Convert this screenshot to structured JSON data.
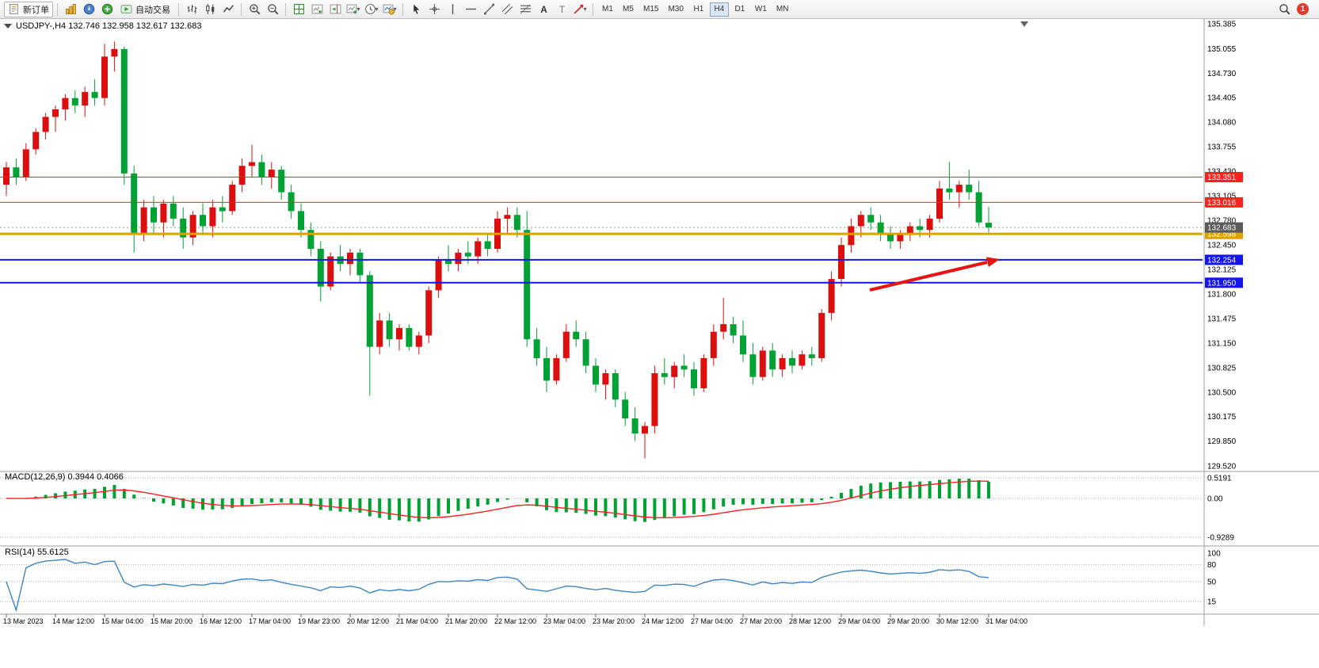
{
  "toolbar": {
    "new_order": "新订单",
    "autotrading": "自动交易",
    "timeframes": [
      "M1",
      "M5",
      "M15",
      "M30",
      "H1",
      "H4",
      "D1",
      "W1",
      "MN"
    ],
    "active_timeframe": "H4",
    "notification_count": "1"
  },
  "chart": {
    "symbol_label": "USDJPY-,H4",
    "ohlc_label": "132.746 132.958 132.617 132.683",
    "price_axis_labels": [
      "135.385",
      "135.055",
      "134.730",
      "134.405",
      "134.080",
      "133.755",
      "133.430",
      "133.105",
      "132.780",
      "132.450",
      "132.125",
      "131.800",
      "131.475",
      "131.150",
      "130.825",
      "130.500",
      "130.175",
      "129.850",
      "129.520"
    ],
    "hlines": [
      {
        "price": 133.351,
        "label": "133.351",
        "color": "#ff2020",
        "width": 1
      },
      {
        "price": 133.016,
        "label": "133.016",
        "color": "#ff2020",
        "width": 1
      },
      {
        "price": 132.598,
        "label": "132.598",
        "color": "#dfa000",
        "width": 3
      },
      {
        "price": 132.254,
        "label": "132.254",
        "color": "#1414ee",
        "width": 2
      },
      {
        "price": 131.95,
        "label": "131.950",
        "color": "#1414ee",
        "width": 2
      }
    ],
    "current_price": {
      "price": 132.683,
      "label": "132.683",
      "box_color": "#5a5a5a"
    }
  },
  "chart_data": {
    "type": "candlestick",
    "symbol": "USDJPY-",
    "timeframe": "H4",
    "ylim": [
      129.52,
      135.385
    ],
    "up_color": "#dd0e0e",
    "down_color": "#00a234",
    "x_labels": [
      "13 Mar 2023",
      "14 Mar 12:00",
      "15 Mar 04:00",
      "15 Mar 20:00",
      "16 Mar 12:00",
      "17 Mar 04:00",
      "19 Mar 23:00",
      "20 Mar 12:00",
      "21 Mar 04:00",
      "21 Mar 20:00",
      "22 Mar 12:00",
      "23 Mar 04:00",
      "23 Mar 20:00",
      "24 Mar 12:00",
      "27 Mar 04:00",
      "27 Mar 20:00",
      "28 Mar 12:00",
      "29 Mar 04:00",
      "29 Mar 20:00",
      "30 Mar 12:00",
      "31 Mar 04:00"
    ],
    "ohlc": [
      [
        133.25,
        133.55,
        133.1,
        133.48
      ],
      [
        133.48,
        133.6,
        133.25,
        133.35
      ],
      [
        133.35,
        133.8,
        133.3,
        133.72
      ],
      [
        133.72,
        134.0,
        133.65,
        133.95
      ],
      [
        133.95,
        134.2,
        133.85,
        134.15
      ],
      [
        134.15,
        134.3,
        133.95,
        134.25
      ],
      [
        134.25,
        134.45,
        134.1,
        134.4
      ],
      [
        134.4,
        134.5,
        134.2,
        134.3
      ],
      [
        134.3,
        134.55,
        134.15,
        134.48
      ],
      [
        134.48,
        134.65,
        134.3,
        134.4
      ],
      [
        134.4,
        135.12,
        134.3,
        134.95
      ],
      [
        134.95,
        135.15,
        134.75,
        135.05
      ],
      [
        135.05,
        135.08,
        133.25,
        133.4
      ],
      [
        133.4,
        133.5,
        132.35,
        132.6
      ],
      [
        132.6,
        133.05,
        132.5,
        132.95
      ],
      [
        132.95,
        133.1,
        132.6,
        132.75
      ],
      [
        132.75,
        133.05,
        132.55,
        133.0
      ],
      [
        133.0,
        133.1,
        132.7,
        132.8
      ],
      [
        132.8,
        132.95,
        132.4,
        132.55
      ],
      [
        132.55,
        132.9,
        132.45,
        132.85
      ],
      [
        132.85,
        133.0,
        132.6,
        132.7
      ],
      [
        132.7,
        133.05,
        132.55,
        132.95
      ],
      [
        132.95,
        133.1,
        132.75,
        132.9
      ],
      [
        132.9,
        133.3,
        132.85,
        133.25
      ],
      [
        133.25,
        133.6,
        133.15,
        133.5
      ],
      [
        133.5,
        133.78,
        133.35,
        133.55
      ],
      [
        133.55,
        133.65,
        133.25,
        133.35
      ],
      [
        133.35,
        133.55,
        133.2,
        133.45
      ],
      [
        133.45,
        133.5,
        133.05,
        133.15
      ],
      [
        133.15,
        133.25,
        132.8,
        132.9
      ],
      [
        132.9,
        133.0,
        132.55,
        132.65
      ],
      [
        132.65,
        132.75,
        132.3,
        132.4
      ],
      [
        132.4,
        132.5,
        131.7,
        131.9
      ],
      [
        131.9,
        132.35,
        131.85,
        132.3
      ],
      [
        132.3,
        132.45,
        132.1,
        132.2
      ],
      [
        132.2,
        132.4,
        132.05,
        132.35
      ],
      [
        132.35,
        132.4,
        131.95,
        132.05
      ],
      [
        132.05,
        132.1,
        130.45,
        131.1
      ],
      [
        131.1,
        131.55,
        131.0,
        131.45
      ],
      [
        131.45,
        131.55,
        131.1,
        131.2
      ],
      [
        131.2,
        131.4,
        131.05,
        131.35
      ],
      [
        131.35,
        131.4,
        131.05,
        131.1
      ],
      [
        131.1,
        131.3,
        131.0,
        131.25
      ],
      [
        131.25,
        131.9,
        131.15,
        131.85
      ],
      [
        131.85,
        132.3,
        131.75,
        132.25
      ],
      [
        132.25,
        132.45,
        132.1,
        132.2
      ],
      [
        132.2,
        132.4,
        132.1,
        132.35
      ],
      [
        132.35,
        132.5,
        132.2,
        132.3
      ],
      [
        132.3,
        132.55,
        132.2,
        132.5
      ],
      [
        132.5,
        132.6,
        132.3,
        132.4
      ],
      [
        132.4,
        132.9,
        132.35,
        132.8
      ],
      [
        132.8,
        132.95,
        132.6,
        132.85
      ],
      [
        132.85,
        132.95,
        132.55,
        132.65
      ],
      [
        132.65,
        132.9,
        131.1,
        131.2
      ],
      [
        131.2,
        131.35,
        130.85,
        130.95
      ],
      [
        130.95,
        131.1,
        130.5,
        130.65
      ],
      [
        130.65,
        131.0,
        130.6,
        130.95
      ],
      [
        130.95,
        131.4,
        130.9,
        131.3
      ],
      [
        131.3,
        131.45,
        131.1,
        131.2
      ],
      [
        131.2,
        131.3,
        130.75,
        130.85
      ],
      [
        130.85,
        130.95,
        130.5,
        130.6
      ],
      [
        130.6,
        130.8,
        130.4,
        130.75
      ],
      [
        130.75,
        130.8,
        130.3,
        130.4
      ],
      [
        130.4,
        130.5,
        130.05,
        130.15
      ],
      [
        130.15,
        130.3,
        129.85,
        129.95
      ],
      [
        129.95,
        130.1,
        129.62,
        130.05
      ],
      [
        130.05,
        130.85,
        129.95,
        130.75
      ],
      [
        130.75,
        130.95,
        130.6,
        130.7
      ],
      [
        130.7,
        130.9,
        130.55,
        130.85
      ],
      [
        130.85,
        131.0,
        130.7,
        130.8
      ],
      [
        130.8,
        130.9,
        130.45,
        130.55
      ],
      [
        130.55,
        131.0,
        130.5,
        130.95
      ],
      [
        130.95,
        131.4,
        130.85,
        131.3
      ],
      [
        131.3,
        131.75,
        131.2,
        131.4
      ],
      [
        131.4,
        131.5,
        131.15,
        131.25
      ],
      [
        131.25,
        131.45,
        130.9,
        131.0
      ],
      [
        131.0,
        131.15,
        130.6,
        130.7
      ],
      [
        130.7,
        131.1,
        130.65,
        131.05
      ],
      [
        131.05,
        131.15,
        130.7,
        130.8
      ],
      [
        130.8,
        131.0,
        130.7,
        130.95
      ],
      [
        130.95,
        131.05,
        130.75,
        130.85
      ],
      [
        130.85,
        131.05,
        130.8,
        131.0
      ],
      [
        131.0,
        131.1,
        130.85,
        130.95
      ],
      [
        130.95,
        131.6,
        130.9,
        131.55
      ],
      [
        131.55,
        132.1,
        131.45,
        132.0
      ],
      [
        132.0,
        132.55,
        131.9,
        132.45
      ],
      [
        132.45,
        132.8,
        132.35,
        132.7
      ],
      [
        132.7,
        132.9,
        132.55,
        132.85
      ],
      [
        132.85,
        132.95,
        132.65,
        132.75
      ],
      [
        132.75,
        132.85,
        132.5,
        132.6
      ],
      [
        132.6,
        132.7,
        132.4,
        132.5
      ],
      [
        132.5,
        132.65,
        132.4,
        132.6
      ],
      [
        132.6,
        132.75,
        132.5,
        132.7
      ],
      [
        132.7,
        132.8,
        132.55,
        132.65
      ],
      [
        132.65,
        132.85,
        132.55,
        132.8
      ],
      [
        132.8,
        133.3,
        132.75,
        133.2
      ],
      [
        133.2,
        133.55,
        133.05,
        133.15
      ],
      [
        133.15,
        133.3,
        132.95,
        133.25
      ],
      [
        133.25,
        133.45,
        133.05,
        133.15
      ],
      [
        133.15,
        133.3,
        132.7,
        132.75
      ],
      [
        132.746,
        132.958,
        132.617,
        132.683
      ]
    ]
  },
  "macd": {
    "label": "MACD(12,26,9) 0.3944 0.4066",
    "axis_labels": [
      "0.5191",
      "0.00",
      "-0.9289"
    ],
    "max": 0.5191,
    "min": -0.9289,
    "histogram_color": "#00a234",
    "signal_color": "#ff2020"
  },
  "rsi": {
    "label": "RSI(14) 55.6125",
    "axis_labels": [
      "100",
      "80",
      "50",
      "15"
    ],
    "levels": [
      80,
      50,
      15
    ],
    "line_color": "#3d85c6"
  },
  "annotation": {
    "arrow_color": "#e81414"
  }
}
